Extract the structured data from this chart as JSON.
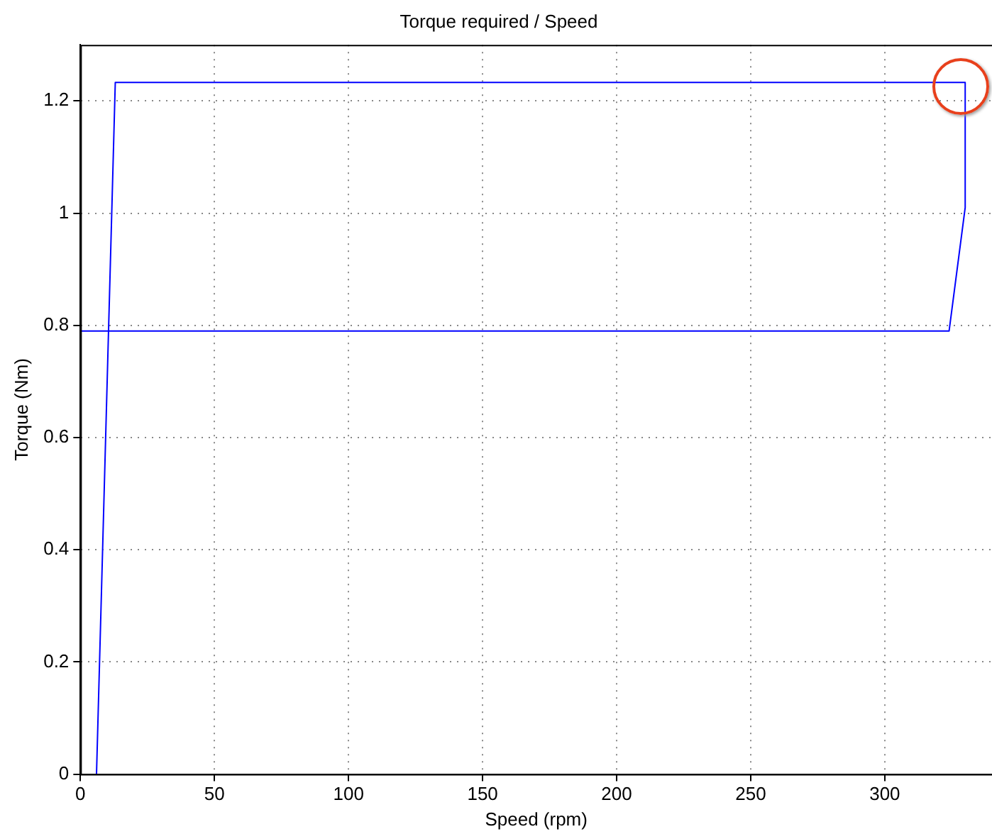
{
  "chart_data": {
    "type": "line",
    "title": "Torque required / Speed",
    "xlabel": "Speed (rpm)",
    "ylabel": "Torque (Nm)",
    "series": [
      {
        "color": "#0000ff",
        "x": [
          6,
          13,
          330,
          330,
          324,
          0
        ],
        "values": [
          0,
          1.233,
          1.233,
          1.01,
          0.79,
          0.79
        ]
      }
    ],
    "xlim": [
      0,
      340
    ],
    "xticks": [
      0,
      50,
      100,
      150,
      200,
      250,
      300
    ],
    "ylim": [
      0,
      1.3
    ],
    "yticks": [
      0,
      0.2,
      0.4,
      0.6,
      0.8,
      1,
      1.2
    ],
    "grid": true,
    "legend": false,
    "marker": "none",
    "line_style": "solid"
  }
}
